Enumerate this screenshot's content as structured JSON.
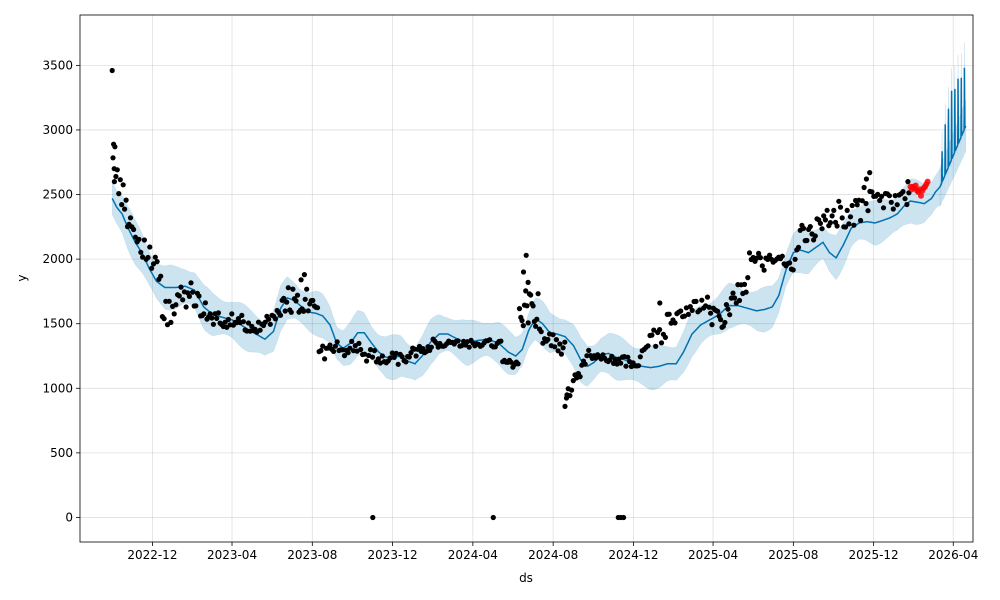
{
  "chart_data": {
    "type": "line",
    "title": "",
    "xlabel": "ds",
    "ylabel": "y",
    "x_tick_labels": [
      "2022-12",
      "2023-04",
      "2023-08",
      "2023-12",
      "2024-04",
      "2024-08",
      "2024-12",
      "2025-04",
      "2025-08",
      "2025-12",
      "2026-04"
    ],
    "y_ticks": [
      0,
      500,
      1000,
      1500,
      2000,
      2500,
      3000,
      3500
    ],
    "xlim": [
      "2022-08-13",
      "2026-05-01"
    ],
    "ylim": [
      -190,
      3890
    ],
    "grid": true,
    "colors": {
      "forecast": "#0072B2",
      "interval": "#0072B2",
      "observed": "#000000",
      "recent": "#ff0000",
      "grid": "#b0b0b0"
    },
    "forecast_line": [
      [
        "2022-10-01",
        2470
      ],
      [
        "2022-10-08",
        2400
      ],
      [
        "2022-10-16",
        2350
      ],
      [
        "2022-10-25",
        2240
      ],
      [
        "2022-11-05",
        2130
      ],
      [
        "2022-11-15",
        2050
      ],
      [
        "2022-11-26",
        1930
      ],
      [
        "2022-12-07",
        1830
      ],
      [
        "2022-12-20",
        1780
      ],
      [
        "2023-01-05",
        1780
      ],
      [
        "2023-01-20",
        1790
      ],
      [
        "2023-02-03",
        1760
      ],
      [
        "2023-02-17",
        1630
      ],
      [
        "2023-03-03",
        1570
      ],
      [
        "2023-03-17",
        1550
      ],
      [
        "2023-04-01",
        1530
      ],
      [
        "2023-04-15",
        1490
      ],
      [
        "2023-04-27",
        1450
      ],
      [
        "2023-05-11",
        1410
      ],
      [
        "2023-05-21",
        1380
      ],
      [
        "2023-06-03",
        1440
      ],
      [
        "2023-06-14",
        1620
      ],
      [
        "2023-06-24",
        1700
      ],
      [
        "2023-07-05",
        1680
      ],
      [
        "2023-07-16",
        1630
      ],
      [
        "2023-07-27",
        1590
      ],
      [
        "2023-08-07",
        1580
      ],
      [
        "2023-08-17",
        1560
      ],
      [
        "2023-08-28",
        1490
      ],
      [
        "2023-09-07",
        1350
      ],
      [
        "2023-09-17",
        1310
      ],
      [
        "2023-09-28",
        1350
      ],
      [
        "2023-10-09",
        1430
      ],
      [
        "2023-10-19",
        1430
      ],
      [
        "2023-10-30",
        1350
      ],
      [
        "2023-11-10",
        1280
      ],
      [
        "2023-11-21",
        1240
      ],
      [
        "2023-12-02",
        1240
      ],
      [
        "2023-12-14",
        1250
      ],
      [
        "2023-12-24",
        1210
      ],
      [
        "2024-01-04",
        1190
      ],
      [
        "2024-01-15",
        1250
      ],
      [
        "2024-01-28",
        1360
      ],
      [
        "2024-02-10",
        1420
      ],
      [
        "2024-02-23",
        1420
      ],
      [
        "2024-03-09",
        1380
      ],
      [
        "2024-03-23",
        1350
      ],
      [
        "2024-04-08",
        1370
      ],
      [
        "2024-04-23",
        1380
      ],
      [
        "2024-05-10",
        1350
      ],
      [
        "2024-05-25",
        1280
      ],
      [
        "2024-06-05",
        1250
      ],
      [
        "2024-06-15",
        1300
      ],
      [
        "2024-06-25",
        1450
      ],
      [
        "2024-07-05",
        1540
      ],
      [
        "2024-07-16",
        1500
      ],
      [
        "2024-07-27",
        1430
      ],
      [
        "2024-08-07",
        1420
      ],
      [
        "2024-08-19",
        1400
      ],
      [
        "2024-09-01",
        1330
      ],
      [
        "2024-09-12",
        1220
      ],
      [
        "2024-09-22",
        1170
      ],
      [
        "2024-10-02",
        1200
      ],
      [
        "2024-10-13",
        1260
      ],
      [
        "2024-10-24",
        1270
      ],
      [
        "2024-11-05",
        1240
      ],
      [
        "2024-11-18",
        1220
      ],
      [
        "2024-12-01",
        1190
      ],
      [
        "2024-12-14",
        1170
      ],
      [
        "2024-12-27",
        1160
      ],
      [
        "2025-01-09",
        1170
      ],
      [
        "2025-01-22",
        1190
      ],
      [
        "2025-02-04",
        1190
      ],
      [
        "2025-02-15",
        1280
      ],
      [
        "2025-02-28",
        1420
      ],
      [
        "2025-03-13",
        1490
      ],
      [
        "2025-03-27",
        1530
      ],
      [
        "2025-04-10",
        1570
      ],
      [
        "2025-04-25",
        1640
      ],
      [
        "2025-05-09",
        1640
      ],
      [
        "2025-05-23",
        1620
      ],
      [
        "2025-06-06",
        1600
      ],
      [
        "2025-06-18",
        1610
      ],
      [
        "2025-06-30",
        1630
      ],
      [
        "2025-07-10",
        1720
      ],
      [
        "2025-07-21",
        1920
      ],
      [
        "2025-08-01",
        2050
      ],
      [
        "2025-08-12",
        2070
      ],
      [
        "2025-08-24",
        2050
      ],
      [
        "2025-09-04",
        2090
      ],
      [
        "2025-09-15",
        2130
      ],
      [
        "2025-09-25",
        2050
      ],
      [
        "2025-10-05",
        2010
      ],
      [
        "2025-10-16",
        2110
      ],
      [
        "2025-10-28",
        2240
      ],
      [
        "2025-11-09",
        2280
      ],
      [
        "2025-11-21",
        2290
      ],
      [
        "2025-12-03",
        2280
      ],
      [
        "2025-12-15",
        2300
      ],
      [
        "2025-12-26",
        2320
      ],
      [
        "2026-01-06",
        2350
      ],
      [
        "2026-01-16",
        2410
      ],
      [
        "2026-01-26",
        2450
      ],
      [
        "2026-02-06",
        2440
      ],
      [
        "2026-02-16",
        2430
      ],
      [
        "2026-02-27",
        2470
      ],
      [
        "2026-03-05",
        2520
      ],
      [
        "2026-03-12",
        2560
      ]
    ],
    "interval_half_width": 150,
    "forecast_extension": {
      "x_start": "2026-03-12",
      "x_end": "2026-04-20",
      "base_start": 2560,
      "base_end": 3030,
      "spike_count": 8,
      "spike_peaks": [
        2890,
        3100,
        3270,
        3380,
        3430,
        3470,
        3510,
        3550
      ],
      "interval_half_width_start": 150,
      "interval_half_width_end": 200
    },
    "observed_clusters": [
      {
        "x_start": "2022-10-01",
        "x_end": "2022-11-01",
        "y_start": 2750,
        "y_end": 2230,
        "jitter": 110,
        "count": 14
      },
      {
        "x_start": "2022-11-01",
        "x_end": "2022-12-15",
        "y_start": 2230,
        "y_end": 1850,
        "jitter": 90,
        "count": 16
      },
      {
        "x_start": "2022-12-15",
        "x_end": "2023-01-25",
        "y_start": 1560,
        "y_end": 1720,
        "jitter": 110,
        "count": 16
      },
      {
        "x_start": "2023-01-25",
        "x_end": "2023-03-05",
        "y_start": 1760,
        "y_end": 1520,
        "jitter": 90,
        "count": 16
      },
      {
        "x_start": "2023-03-05",
        "x_end": "2023-05-15",
        "y_start": 1540,
        "y_end": 1480,
        "jitter": 60,
        "count": 28
      },
      {
        "x_start": "2023-05-15",
        "x_end": "2023-06-15",
        "y_start": 1460,
        "y_end": 1600,
        "jitter": 60,
        "count": 12
      },
      {
        "x_start": "2023-06-15",
        "x_end": "2023-08-10",
        "y_start": 1680,
        "y_end": 1700,
        "jitter": 110,
        "count": 24
      },
      {
        "x_start": "2023-08-10",
        "x_end": "2023-10-15",
        "y_start": 1280,
        "y_end": 1330,
        "jitter": 60,
        "count": 24
      },
      {
        "x_start": "2023-10-15",
        "x_end": "2023-12-20",
        "y_start": 1260,
        "y_end": 1220,
        "jitter": 50,
        "count": 22
      },
      {
        "x_start": "2023-12-20",
        "x_end": "2024-02-20",
        "y_start": 1250,
        "y_end": 1380,
        "jitter": 50,
        "count": 24
      },
      {
        "x_start": "2024-02-20",
        "x_end": "2024-05-15",
        "y_start": 1340,
        "y_end": 1350,
        "jitter": 30,
        "count": 30
      },
      {
        "x_start": "2024-05-15",
        "x_end": "2024-06-10",
        "y_start": 1200,
        "y_end": 1180,
        "jitter": 30,
        "count": 10
      },
      {
        "x_start": "2024-06-10",
        "x_end": "2024-07-10",
        "y_start": 1650,
        "y_end": 1600,
        "jitter": 160,
        "count": 16
      },
      {
        "x_start": "2024-07-10",
        "x_end": "2024-08-20",
        "y_start": 1420,
        "y_end": 1300,
        "jitter": 60,
        "count": 16
      },
      {
        "x_start": "2024-08-20",
        "x_end": "2024-09-20",
        "y_start": 940,
        "y_end": 1180,
        "jitter": 80,
        "count": 12
      },
      {
        "x_start": "2024-09-20",
        "x_end": "2024-12-10",
        "y_start": 1260,
        "y_end": 1190,
        "jitter": 40,
        "count": 30
      },
      {
        "x_start": "2024-12-10",
        "x_end": "2025-01-20",
        "y_start": 1280,
        "y_end": 1450,
        "jitter": 80,
        "count": 14
      },
      {
        "x_start": "2025-01-20",
        "x_end": "2025-03-25",
        "y_start": 1520,
        "y_end": 1680,
        "jitter": 50,
        "count": 22
      },
      {
        "x_start": "2025-03-25",
        "x_end": "2025-04-20",
        "y_start": 1600,
        "y_end": 1450,
        "jitter": 80,
        "count": 12
      },
      {
        "x_start": "2025-04-20",
        "x_end": "2025-05-25",
        "y_start": 1580,
        "y_end": 1850,
        "jitter": 80,
        "count": 14
      },
      {
        "x_start": "2025-05-25",
        "x_end": "2025-08-05",
        "y_start": 2000,
        "y_end": 1950,
        "jitter": 70,
        "count": 26
      },
      {
        "x_start": "2025-08-05",
        "x_end": "2025-09-20",
        "y_start": 2150,
        "y_end": 2300,
        "jitter": 90,
        "count": 18
      },
      {
        "x_start": "2025-09-20",
        "x_end": "2025-11-15",
        "y_start": 2350,
        "y_end": 2350,
        "jitter": 110,
        "count": 22
      },
      {
        "x_start": "2025-11-15",
        "x_end": "2026-01-25",
        "y_start": 2450,
        "y_end": 2480,
        "jitter": 120,
        "count": 24
      }
    ],
    "observed_points": [
      [
        "2022-10-01",
        3460
      ],
      [
        "2022-10-03",
        2890
      ],
      [
        "2022-10-05",
        2870
      ],
      [
        "2022-10-04",
        2700
      ],
      [
        "2023-11-01",
        0
      ],
      [
        "2024-05-02",
        0
      ],
      [
        "2024-11-08",
        0
      ],
      [
        "2024-11-12",
        0
      ],
      [
        "2024-11-16",
        0
      ],
      [
        "2024-06-21",
        2030
      ],
      [
        "2024-06-17",
        1900
      ],
      [
        "2024-06-24",
        1820
      ],
      [
        "2023-07-20",
        1880
      ],
      [
        "2023-07-15",
        1840
      ],
      [
        "2025-01-10",
        1660
      ],
      [
        "2024-08-19",
        860
      ],
      [
        "2024-08-22",
        950
      ],
      [
        "2025-11-25",
        2670
      ],
      [
        "2025-11-20",
        2620
      ],
      [
        "2026-01-22",
        2600
      ]
    ],
    "recent_points": [
      [
        "2026-01-26",
        2560
      ],
      [
        "2026-01-28",
        2540
      ],
      [
        "2026-01-30",
        2560
      ],
      [
        "2026-02-01",
        2550
      ],
      [
        "2026-02-03",
        2570
      ],
      [
        "2026-02-05",
        2530
      ],
      [
        "2026-02-07",
        2520
      ],
      [
        "2026-02-09",
        2540
      ],
      [
        "2026-02-11",
        2490
      ],
      [
        "2026-02-13",
        2530
      ],
      [
        "2026-02-15",
        2550
      ],
      [
        "2026-02-17",
        2560
      ],
      [
        "2026-02-19",
        2580
      ],
      [
        "2026-02-21",
        2600
      ]
    ]
  }
}
